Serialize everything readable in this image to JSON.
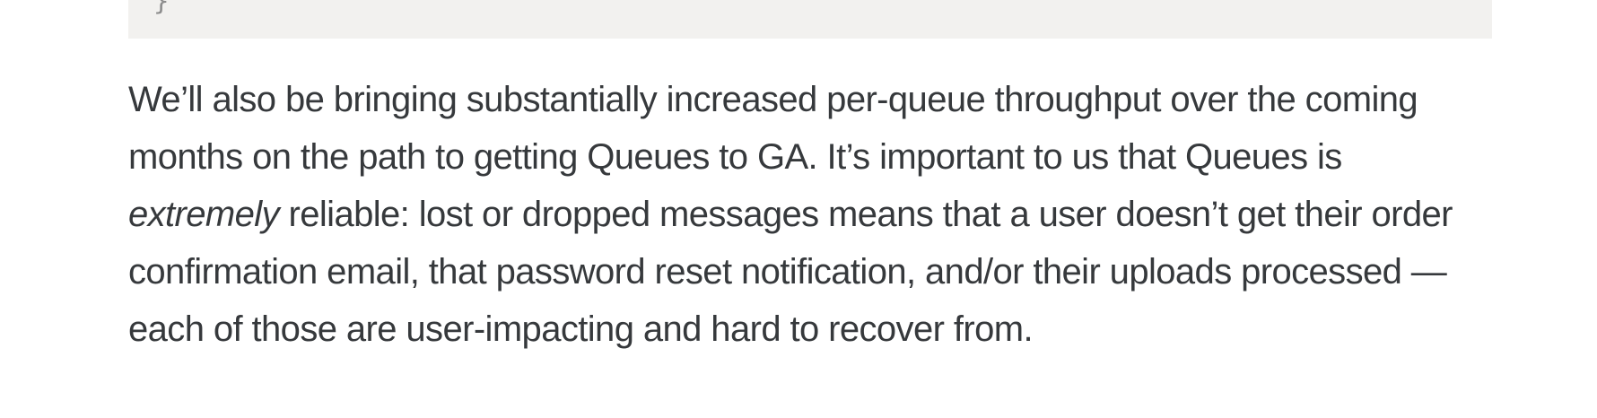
{
  "page": {
    "background_color": "#ffffff",
    "text_color": "#36393c"
  },
  "code_block": {
    "visible_text": "}",
    "background_color": "#f2f1ef",
    "text_color": "#8d8d8d",
    "note_cut_off": "only bottom of closing brace visible at top edge"
  },
  "paragraph": {
    "lines": [
      {
        "text": "We’ll also be bringing substantially increased per-queue throughput over the coming"
      },
      {
        "text": "months on the path to getting Queues to GA. It’s important to us that Queues is"
      },
      {
        "italic": "extremely",
        "text": " reliable: lost or dropped messages means that a user doesn’t get their order"
      },
      {
        "text": "confirmation email, that password reset notification, and/or their uploads processed —"
      },
      {
        "text": "each of those are user-impacting and hard to recover from."
      }
    ]
  }
}
